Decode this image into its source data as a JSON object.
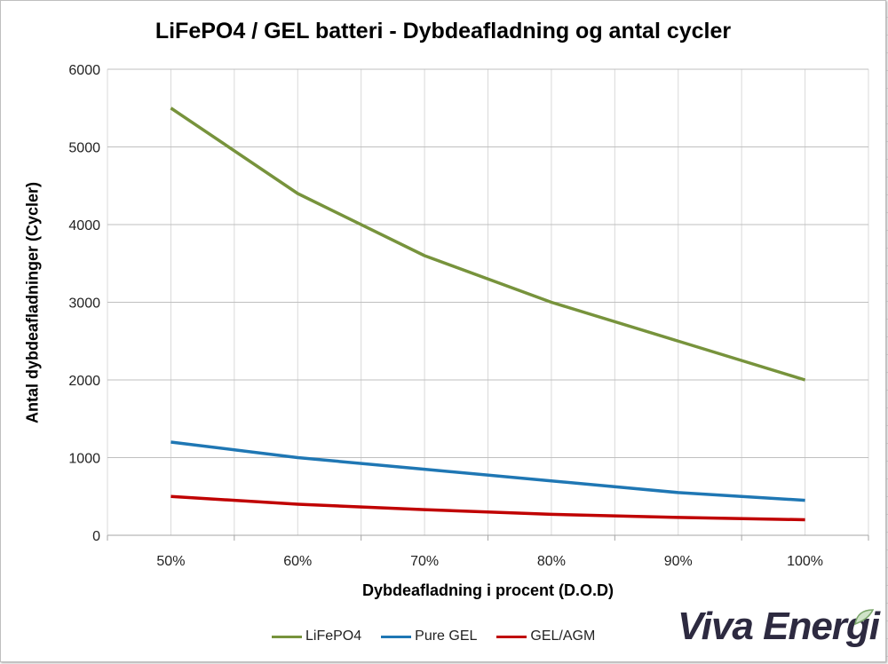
{
  "chart_data": {
    "type": "line",
    "title": "LiFePO4 / GEL batteri - Dybdeafladning og antal cycler",
    "xlabel": "Dybdeafladning i procent (D.O.D)",
    "ylabel": "Antal dybdeafladninger (Cycler)",
    "categories": [
      "50%",
      "60%",
      "70%",
      "80%",
      "90%",
      "100%"
    ],
    "ylim": [
      0,
      6000
    ],
    "yticks": [
      0,
      1000,
      2000,
      3000,
      4000,
      5000,
      6000
    ],
    "grid": true,
    "legend": "bottom",
    "series": [
      {
        "name": "LiFePO4",
        "color": "#77933c",
        "values": [
          5500,
          4400,
          3600,
          3000,
          2500,
          2000
        ]
      },
      {
        "name": "Pure GEL",
        "color": "#1f77b4",
        "values": [
          1200,
          1000,
          850,
          700,
          550,
          450
        ]
      },
      {
        "name": "GEL/AGM",
        "color": "#c00000",
        "values": [
          500,
          400,
          330,
          270,
          230,
          200
        ]
      }
    ]
  },
  "logo": {
    "text": "Viva Energi"
  }
}
